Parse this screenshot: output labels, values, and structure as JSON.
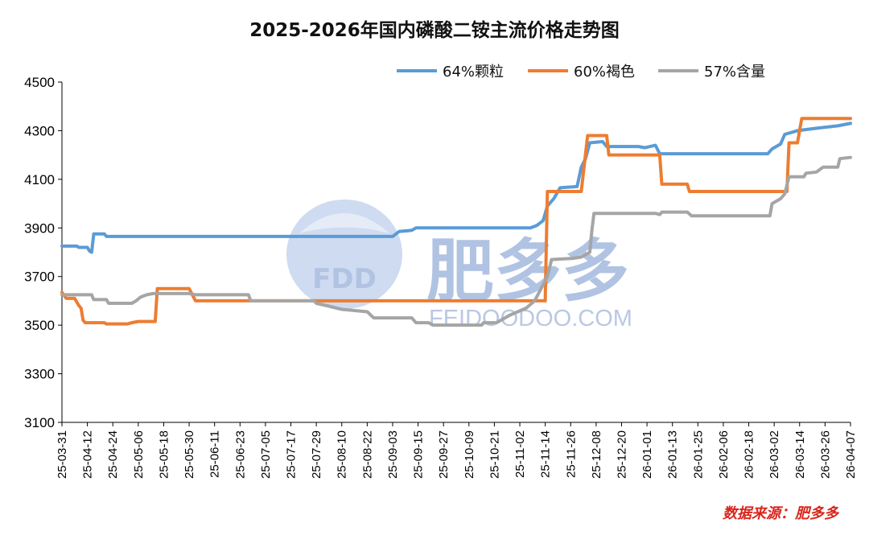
{
  "chart_data": {
    "type": "line",
    "title": "2025-2026年国内磷酸二铵主流价格走势图",
    "source": "数据来源：肥多多",
    "ylim": [
      3100,
      4500
    ],
    "yticks": [
      3100,
      3300,
      3500,
      3700,
      3900,
      4100,
      4300,
      4500
    ],
    "x_start": "2025-03-31",
    "x_end": "2026-04-07",
    "x_tick_labels": [
      "25-03-31",
      "25-04-12",
      "25-04-24",
      "25-05-06",
      "25-05-18",
      "25-05-30",
      "25-06-11",
      "25-06-23",
      "25-07-05",
      "25-07-17",
      "25-07-29",
      "25-08-10",
      "25-08-22",
      "25-09-03",
      "25-09-15",
      "25-09-27",
      "25-10-09",
      "25-10-21",
      "25-11-02",
      "25-11-14",
      "25-11-26",
      "25-12-08",
      "25-12-20",
      "26-01-01",
      "26-01-13",
      "26-01-25",
      "26-02-06",
      "26-02-18",
      "26-03-02",
      "26-03-14",
      "26-03-26",
      "26-04-07"
    ],
    "legend_position": "top-right",
    "grid": false,
    "series": [
      {
        "name": "64%颗粒",
        "color": "#5b9bd5",
        "points": [
          [
            "2025-03-31",
            3825
          ],
          [
            "2025-04-07",
            3825
          ],
          [
            "2025-04-08",
            3820
          ],
          [
            "2025-04-12",
            3820
          ],
          [
            "2025-04-13",
            3805
          ],
          [
            "2025-04-14",
            3800
          ],
          [
            "2025-04-15",
            3875
          ],
          [
            "2025-04-20",
            3875
          ],
          [
            "2025-04-21",
            3865
          ],
          [
            "2025-09-03",
            3865
          ],
          [
            "2025-09-06",
            3885
          ],
          [
            "2025-09-12",
            3890
          ],
          [
            "2025-09-14",
            3900
          ],
          [
            "2025-11-07",
            3900
          ],
          [
            "2025-11-10",
            3910
          ],
          [
            "2025-11-13",
            3930
          ],
          [
            "2025-11-15",
            3990
          ],
          [
            "2025-11-18",
            4020
          ],
          [
            "2025-11-21",
            4065
          ],
          [
            "2025-11-29",
            4070
          ],
          [
            "2025-12-01",
            4150
          ],
          [
            "2025-12-03",
            4185
          ],
          [
            "2025-12-05",
            4250
          ],
          [
            "2025-12-11",
            4255
          ],
          [
            "2025-12-13",
            4235
          ],
          [
            "2025-12-28",
            4235
          ],
          [
            "2025-12-31",
            4230
          ],
          [
            "2026-01-05",
            4240
          ],
          [
            "2026-01-07",
            4205
          ],
          [
            "2026-02-27",
            4205
          ],
          [
            "2026-03-01",
            4225
          ],
          [
            "2026-03-05",
            4245
          ],
          [
            "2026-03-07",
            4285
          ],
          [
            "2026-03-13",
            4300
          ],
          [
            "2026-03-22",
            4310
          ],
          [
            "2026-04-01",
            4320
          ],
          [
            "2026-04-07",
            4330
          ]
        ]
      },
      {
        "name": "60%褐色",
        "color": "#ed7d31",
        "points": [
          [
            "2025-03-31",
            3635
          ],
          [
            "2025-04-02",
            3610
          ],
          [
            "2025-04-06",
            3610
          ],
          [
            "2025-04-08",
            3580
          ],
          [
            "2025-04-09",
            3570
          ],
          [
            "2025-04-10",
            3520
          ],
          [
            "2025-04-11",
            3510
          ],
          [
            "2025-04-20",
            3510
          ],
          [
            "2025-04-21",
            3505
          ],
          [
            "2025-05-01",
            3505
          ],
          [
            "2025-05-03",
            3510
          ],
          [
            "2025-05-06",
            3515
          ],
          [
            "2025-05-14",
            3515
          ],
          [
            "2025-05-15",
            3650
          ],
          [
            "2025-05-30",
            3650
          ],
          [
            "2025-06-02",
            3600
          ],
          [
            "2025-11-14",
            3600
          ],
          [
            "2025-11-15",
            4050
          ],
          [
            "2025-12-01",
            4050
          ],
          [
            "2025-12-04",
            4280
          ],
          [
            "2025-12-13",
            4280
          ],
          [
            "2025-12-14",
            4200
          ],
          [
            "2026-01-07",
            4200
          ],
          [
            "2026-01-08",
            4080
          ],
          [
            "2026-01-20",
            4080
          ],
          [
            "2026-01-21",
            4050
          ],
          [
            "2026-03-08",
            4050
          ],
          [
            "2026-03-09",
            4250
          ],
          [
            "2026-03-13",
            4250
          ],
          [
            "2026-03-15",
            4350
          ],
          [
            "2026-04-07",
            4350
          ]
        ]
      },
      {
        "name": "57%含量",
        "color": "#a5a5a5",
        "points": [
          [
            "2025-03-31",
            3625
          ],
          [
            "2025-04-14",
            3625
          ],
          [
            "2025-04-15",
            3605
          ],
          [
            "2025-04-21",
            3605
          ],
          [
            "2025-04-22",
            3590
          ],
          [
            "2025-05-03",
            3590
          ],
          [
            "2025-05-05",
            3600
          ],
          [
            "2025-05-07",
            3615
          ],
          [
            "2025-05-10",
            3625
          ],
          [
            "2025-05-13",
            3630
          ],
          [
            "2025-05-30",
            3630
          ],
          [
            "2025-06-02",
            3625
          ],
          [
            "2025-06-27",
            3625
          ],
          [
            "2025-06-28",
            3600
          ],
          [
            "2025-07-28",
            3600
          ],
          [
            "2025-07-29",
            3590
          ],
          [
            "2025-08-03",
            3580
          ],
          [
            "2025-08-10",
            3565
          ],
          [
            "2025-08-22",
            3555
          ],
          [
            "2025-08-25",
            3530
          ],
          [
            "2025-09-12",
            3530
          ],
          [
            "2025-09-14",
            3510
          ],
          [
            "2025-09-20",
            3510
          ],
          [
            "2025-09-22",
            3500
          ],
          [
            "2025-10-15",
            3500
          ],
          [
            "2025-10-16",
            3510
          ],
          [
            "2025-10-22",
            3510
          ],
          [
            "2025-10-24",
            3520
          ],
          [
            "2025-10-28",
            3540
          ],
          [
            "2025-11-01",
            3555
          ],
          [
            "2025-11-05",
            3570
          ],
          [
            "2025-11-09",
            3600
          ],
          [
            "2025-11-12",
            3650
          ],
          [
            "2025-11-15",
            3700
          ],
          [
            "2025-11-17",
            3770
          ],
          [
            "2025-11-27",
            3775
          ],
          [
            "2025-12-01",
            3780
          ],
          [
            "2025-12-05",
            3800
          ],
          [
            "2025-12-06",
            3890
          ],
          [
            "2025-12-07",
            3960
          ],
          [
            "2026-01-05",
            3960
          ],
          [
            "2026-01-07",
            3955
          ],
          [
            "2026-01-08",
            3965
          ],
          [
            "2026-01-20",
            3965
          ],
          [
            "2026-01-22",
            3950
          ],
          [
            "2026-02-28",
            3950
          ],
          [
            "2026-03-01",
            4000
          ],
          [
            "2026-03-05",
            4020
          ],
          [
            "2026-03-07",
            4040
          ],
          [
            "2026-03-09",
            4110
          ],
          [
            "2026-03-16",
            4110
          ],
          [
            "2026-03-17",
            4125
          ],
          [
            "2026-03-22",
            4130
          ],
          [
            "2026-03-25",
            4150
          ],
          [
            "2026-04-01",
            4150
          ],
          [
            "2026-04-02",
            4185
          ],
          [
            "2026-04-07",
            4190
          ]
        ]
      }
    ]
  },
  "watermark": {
    "logo_text": "FDD",
    "brand_text": "肥多多",
    "site_text": "FEIDOODOO.COM"
  }
}
